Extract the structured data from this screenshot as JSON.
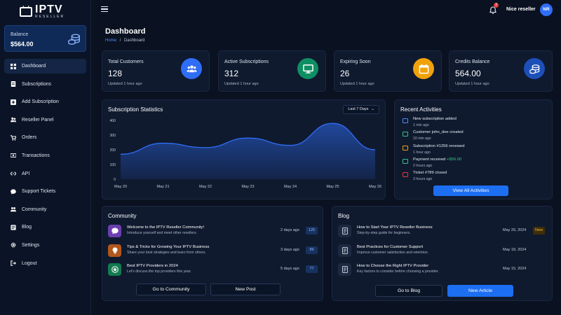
{
  "app": {
    "brand_main": "IPTV",
    "brand_sub": "RESELLER"
  },
  "balance": {
    "label": "Balance",
    "value": "$564.00"
  },
  "sidebar": {
    "items": [
      {
        "label": "Dashboard",
        "icon": "dashboard-icon",
        "active": true
      },
      {
        "label": "Subscriptions",
        "icon": "list-icon"
      },
      {
        "label": "Add Subscription",
        "icon": "plus-square-icon"
      },
      {
        "label": "Reseller Panel",
        "icon": "users-icon"
      },
      {
        "label": "Orders",
        "icon": "cart-icon"
      },
      {
        "label": "Transactions",
        "icon": "money-icon"
      },
      {
        "label": "API",
        "icon": "api-icon"
      },
      {
        "label": "Support Tickets",
        "icon": "chat-icon"
      },
      {
        "label": "Community",
        "icon": "community-icon"
      },
      {
        "label": "Blog",
        "icon": "blog-icon"
      },
      {
        "label": "Settings",
        "icon": "gear-icon"
      },
      {
        "label": "Logout",
        "icon": "logout-icon"
      }
    ]
  },
  "topbar": {
    "notifications": "3",
    "username": "Nice reseller",
    "initials": "NR"
  },
  "page": {
    "title": "Dashboard",
    "breadcrumb_home": "Home",
    "breadcrumb_sep": "/",
    "breadcrumb_current": "Dashboard"
  },
  "stats": [
    {
      "label": "Total Customers",
      "value": "128",
      "updated": "Updated 1 hour ago",
      "icon": "users-icon",
      "color": "#2f6df6"
    },
    {
      "label": "Active Subscriptions",
      "value": "312",
      "updated": "Updated 1 hour ago",
      "icon": "monitor-icon",
      "color": "#0e8f63"
    },
    {
      "label": "Expiring Soon",
      "value": "26",
      "updated": "Updated 1 hour ago",
      "icon": "calendar-icon",
      "color": "#f0a20b"
    },
    {
      "label": "Credits Balance",
      "value": "564.00",
      "updated": "Updated 1 hour ago",
      "icon": "coins-icon",
      "color": "#1d4fb8"
    }
  ],
  "chart_panel": {
    "title": "Subscription Statistics",
    "range": "Last 7 Days"
  },
  "chart_data": {
    "type": "area",
    "title": "Subscription Statistics",
    "x": [
      "May 20",
      "May 21",
      "May 22",
      "May 23",
      "May 24",
      "May 25",
      "May 26"
    ],
    "series": [
      {
        "values": [
          170,
          245,
          215,
          280,
          230,
          380,
          200
        ]
      }
    ],
    "yticks": [
      0,
      100,
      200,
      300,
      400
    ],
    "ylim": [
      0,
      400
    ],
    "grid": false,
    "color": "#2f6df6"
  },
  "activities": {
    "title": "Recent Activities",
    "items": [
      {
        "title": "New subscription added",
        "amount": "",
        "time": "1 min ago",
        "color": "#4f8dff"
      },
      {
        "title": "Customer john_doe created",
        "amount": "",
        "time": "10 min ago",
        "color": "#37c48a"
      },
      {
        "title": "Subscription #1256 renewed",
        "amount": "",
        "time": "1 hour ago",
        "color": "#f0a20b"
      },
      {
        "title": "Payment received",
        "amount": "+$50.00",
        "time": "2 hours ago",
        "color": "#37c48a"
      },
      {
        "title": "Ticket #789 closed",
        "amount": "",
        "time": "3 hours ago",
        "color": "#e53935"
      }
    ],
    "button": "View All Activities"
  },
  "community": {
    "title": "Community",
    "posts": [
      {
        "title": "Welcome to the IPTV Reseller Community!",
        "desc": "Introduce yourself and meet other resellers.",
        "date": "2 days ago",
        "count": "125",
        "color": "#6b3fb0",
        "icon": "chat-icon"
      },
      {
        "title": "Tips & Tricks for Growing Your IPTV Business",
        "desc": "Share your best strategies and learn from others.",
        "date": "3 days ago",
        "count": "89",
        "color": "#b3561c",
        "icon": "lightbulb-icon"
      },
      {
        "title": "Best IPTV Providers in 2024",
        "desc": "Let's discuss the top providers this year.",
        "date": "5 days ago",
        "count": "77",
        "color": "#137a4f",
        "icon": "star-icon"
      }
    ],
    "btn_primary": "Go to Community",
    "btn_secondary": "New Post"
  },
  "blog": {
    "title": "Blog",
    "posts": [
      {
        "title": "How to Start Your IPTV Reseller Business",
        "desc": "Step-by-step guide for beginners.",
        "date": "May 20, 2024",
        "badge": "New"
      },
      {
        "title": "Best Practices for Customer Support",
        "desc": "Improve customer satisfaction and retention.",
        "date": "May 18, 2024",
        "badge": ""
      },
      {
        "title": "How to Choose the Right IPTV Provider",
        "desc": "Key factors to consider before choosing a provider.",
        "date": "May 15, 2024",
        "badge": ""
      }
    ],
    "btn_primary": "Go to Blog",
    "btn_secondary": "New Article"
  }
}
